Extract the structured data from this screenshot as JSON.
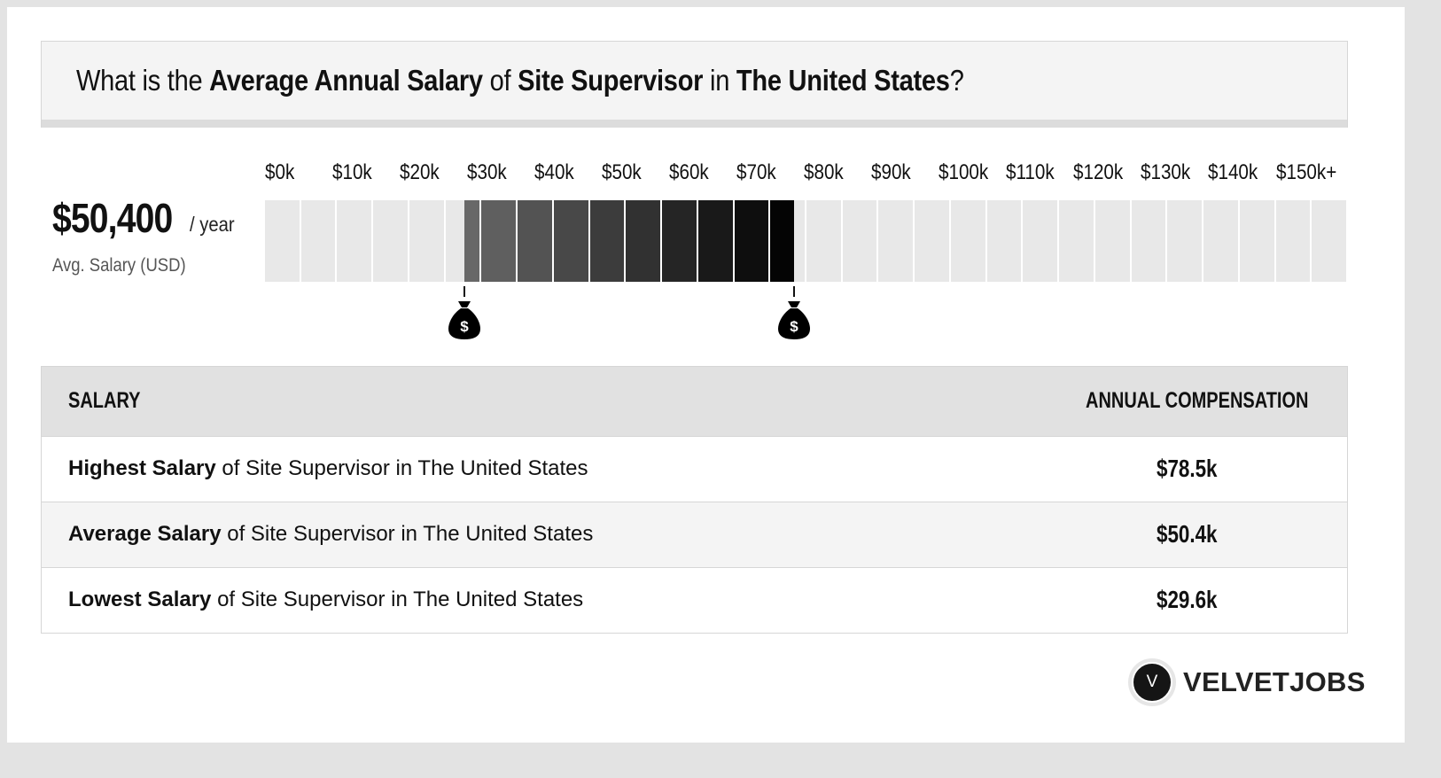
{
  "headline": {
    "prefix": "What is the ",
    "metric": "Average Annual Salary",
    "of": " of ",
    "job": "Site Supervisor",
    "in": " in ",
    "location": "The United States",
    "suffix": "?"
  },
  "summary": {
    "value": "$50,400",
    "unit": "/ year",
    "caption": "Avg. Salary (USD)"
  },
  "chart_data": {
    "type": "bar",
    "orientation": "horizontal-range",
    "x": {
      "min": 0,
      "max": 150000,
      "tick_labels": [
        "$0k",
        "$10k",
        "$20k",
        "$30k",
        "$40k",
        "$50k",
        "$60k",
        "$70k",
        "$80k",
        "$90k",
        "$100k",
        "$110k",
        "$120k",
        "$130k",
        "$140k",
        "$150k+"
      ]
    },
    "range": {
      "low": 29600,
      "high": 78500
    },
    "markers": [
      {
        "value": 29600,
        "icon": "money-bag-icon"
      },
      {
        "value": 78500,
        "icon": "money-bag-icon"
      }
    ],
    "colors": {
      "empty": "#e8e8e8",
      "range_start": "#6a6a6a",
      "range_end": "#000000"
    }
  },
  "table": {
    "headers": {
      "salary": "SALARY",
      "compensation": "ANNUAL COMPENSATION"
    },
    "rows": [
      {
        "label_bold": "Highest Salary",
        "label_rest": " of Site Supervisor in The United States",
        "value": "$78.5k"
      },
      {
        "label_bold": "Average Salary",
        "label_rest": " of Site Supervisor in The United States",
        "value": "$50.4k"
      },
      {
        "label_bold": "Lowest Salary",
        "label_rest": " of Site Supervisor in The United States",
        "value": "$29.6k"
      }
    ]
  },
  "brand": {
    "badge": "V",
    "name": "VELVETJOBS"
  }
}
